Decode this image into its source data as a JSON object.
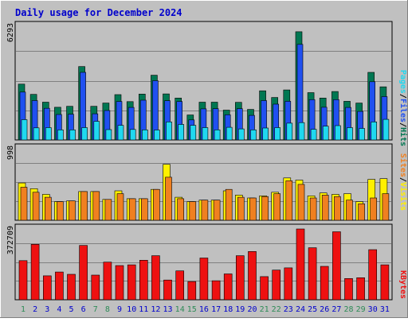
{
  "title": "Daily usage for December 2024",
  "colors": {
    "background": "#c0c0c0",
    "title": "#0000cc",
    "hits": "#007752",
    "files": "#2050f0",
    "pages": "#20d8f0",
    "visits": "#fff000",
    "sites": "#f08020",
    "kbytes": "#ee1111",
    "weekend_day": "#2e8b57",
    "weekday": "#0000cc"
  },
  "legend": {
    "hits": "Hits",
    "files": "Files",
    "pages": "Pages",
    "visits": "Visits",
    "sites": "Sites",
    "kbytes": "KBytes",
    "sep": "/"
  },
  "chart_data": [
    {
      "type": "bar",
      "title": "Daily usage for December 2024",
      "ymax_label": "6293",
      "ymax": 6293,
      "categories": [
        "1",
        "2",
        "3",
        "4",
        "5",
        "6",
        "7",
        "8",
        "9",
        "10",
        "11",
        "12",
        "13",
        "14",
        "15",
        "16",
        "17",
        "18",
        "19",
        "20",
        "21",
        "22",
        "23",
        "24",
        "25",
        "26",
        "27",
        "28",
        "29",
        "30",
        "31"
      ],
      "weekend_days": [
        "1",
        "7",
        "8",
        "14",
        "15",
        "21",
        "22",
        "28",
        "29"
      ],
      "series": [
        {
          "name": "Hits",
          "values": [
            3090,
            2520,
            2090,
            1810,
            1860,
            4060,
            1860,
            2040,
            2510,
            2120,
            2540,
            3580,
            2550,
            2320,
            1380,
            2090,
            2090,
            1650,
            2080,
            1690,
            2720,
            2350,
            2770,
            5990,
            2620,
            2320,
            2680,
            2140,
            2040,
            3740,
            2940
          ]
        },
        {
          "name": "Files",
          "values": [
            2650,
            2180,
            1750,
            1410,
            1420,
            3740,
            1450,
            1630,
            2130,
            1800,
            2200,
            3280,
            2170,
            2130,
            1110,
            1720,
            1730,
            1390,
            1730,
            1360,
            2180,
            1980,
            2140,
            5290,
            2230,
            1810,
            2230,
            1800,
            1580,
            3220,
            2400
          ]
        },
        {
          "name": "Pages",
          "values": [
            1120,
            670,
            680,
            560,
            560,
            680,
            1030,
            570,
            810,
            580,
            560,
            550,
            1000,
            860,
            810,
            680,
            560,
            700,
            610,
            560,
            660,
            680,
            930,
            960,
            590,
            760,
            790,
            680,
            640,
            1000,
            1140
          ]
        }
      ]
    },
    {
      "type": "bar",
      "ymax_label": "998",
      "ymax": 998,
      "series": [
        {
          "name": "Visits",
          "values": [
            520,
            440,
            360,
            260,
            270,
            400,
            400,
            290,
            410,
            300,
            300,
            430,
            780,
            320,
            260,
            280,
            280,
            410,
            350,
            310,
            340,
            390,
            590,
            560,
            340,
            380,
            360,
            370,
            260,
            570,
            580
          ]
        },
        {
          "name": "Sites",
          "values": [
            460,
            390,
            320,
            260,
            270,
            400,
            400,
            290,
            370,
            300,
            300,
            430,
            600,
            300,
            260,
            280,
            280,
            430,
            320,
            310,
            330,
            370,
            550,
            500,
            310,
            350,
            330,
            280,
            230,
            310,
            370
          ]
        }
      ]
    },
    {
      "type": "bar",
      "ymax_label": "372709",
      "ymax": 372709,
      "series": [
        {
          "name": "KBytes",
          "values": [
            206000,
            292000,
            126000,
            146000,
            134000,
            286000,
            130000,
            198000,
            180000,
            184000,
            208000,
            232000,
            104000,
            152000,
            96000,
            220000,
            100000,
            136000,
            232000,
            254000,
            122000,
            156000,
            168000,
            372709,
            274000,
            176000,
            358000,
            112000,
            116000,
            264000,
            184000
          ]
        }
      ]
    }
  ]
}
